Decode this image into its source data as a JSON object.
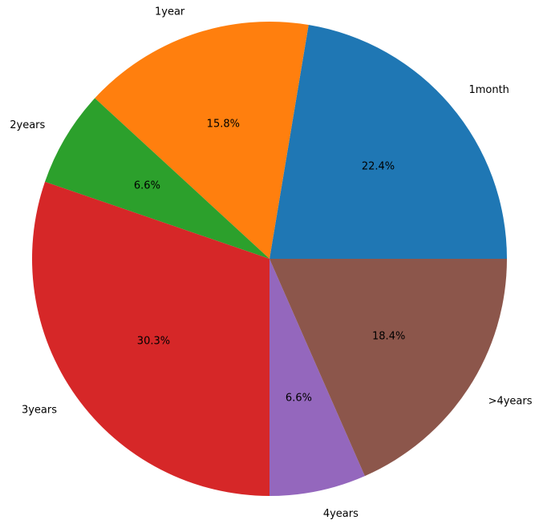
{
  "chart_data": {
    "type": "pie",
    "title": "",
    "start_angle_deg": 0,
    "direction": "counterclockwise",
    "slices": [
      {
        "label": "1month",
        "value": 17,
        "pct_label": "22.4%",
        "color": "#1f77b4"
      },
      {
        "label": "1year",
        "value": 12,
        "pct_label": "15.8%",
        "color": "#ff7f0e"
      },
      {
        "label": "2years",
        "value": 5,
        "pct_label": "6.6%",
        "color": "#2ca02c"
      },
      {
        "label": "3years",
        "value": 23,
        "pct_label": "30.3%",
        "color": "#d62728"
      },
      {
        "label": "4years",
        "value": 5,
        "pct_label": "6.6%",
        "color": "#9467bd"
      },
      {
        "label": ">4years",
        "value": 14,
        "pct_label": "18.4%",
        "color": "#8c564b"
      }
    ]
  }
}
